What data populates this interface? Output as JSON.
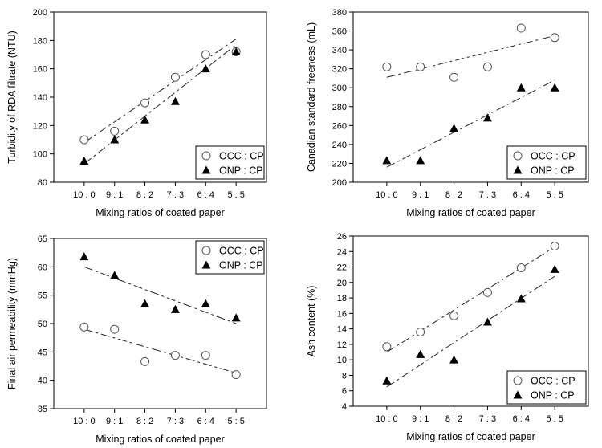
{
  "chart_data": [
    {
      "type": "scatter",
      "categories": [
        "10 : 0",
        "9 : 1",
        "8 : 2",
        "7 : 3",
        "6 : 4",
        "5 : 5"
      ],
      "xlabel": "Mixing ratios of coated paper",
      "ylabel": "Turbidity of RDA filtrate (NTU)",
      "ylim": [
        80,
        200
      ],
      "yticks": [
        80,
        100,
        120,
        140,
        160,
        180,
        200
      ],
      "legend_position": "bottom-right",
      "series": [
        {
          "name": "OCC : CP",
          "marker": "circle",
          "values": [
            110,
            116,
            136,
            154,
            170,
            172
          ],
          "trend": [
            108,
            181
          ]
        },
        {
          "name": "ONP : CP",
          "marker": "triangle",
          "values": [
            95,
            110,
            124,
            137,
            160,
            172
          ],
          "trend": [
            93,
            177
          ]
        }
      ]
    },
    {
      "type": "scatter",
      "categories": [
        "10 : 0",
        "9 : 1",
        "8 : 2",
        "7 : 3",
        "6 : 4",
        "5 : 5"
      ],
      "xlabel": "Mixing ratios of coated paper",
      "ylabel": "Canadian standard freeness (mL)",
      "ylim": [
        200,
        380
      ],
      "yticks": [
        200,
        220,
        240,
        260,
        280,
        300,
        320,
        340,
        360,
        380
      ],
      "legend_position": "bottom-right",
      "series": [
        {
          "name": "OCC : CP",
          "marker": "circle",
          "values": [
            322,
            322,
            311,
            322,
            363,
            353
          ],
          "trend": [
            311,
            355
          ]
        },
        {
          "name": "ONP : CP",
          "marker": "triangle",
          "values": [
            223,
            223,
            257,
            268,
            300,
            300
          ],
          "trend": [
            216,
            308
          ]
        }
      ]
    },
    {
      "type": "scatter",
      "categories": [
        "10 : 0",
        "9 : 1",
        "8 : 2",
        "7 : 3",
        "6 : 4",
        "5 : 5"
      ],
      "xlabel": "Mixing ratios of coated paper",
      "ylabel": "Final air permeability (mmHg)",
      "ylim": [
        35,
        65
      ],
      "yticks": [
        35,
        40,
        45,
        50,
        55,
        60,
        65
      ],
      "legend_position": "top-right",
      "series": [
        {
          "name": "OCC : CP",
          "marker": "circle",
          "values": [
            49.4,
            49.0,
            43.3,
            44.4,
            44.4,
            41.0
          ],
          "trend": [
            49.0,
            41.3
          ]
        },
        {
          "name": "ONP : CP",
          "marker": "triangle",
          "values": [
            61.8,
            58.5,
            53.5,
            52.5,
            53.5,
            51.0
          ],
          "trend": [
            60.0,
            50.0
          ]
        }
      ]
    },
    {
      "type": "scatter",
      "categories": [
        "10 : 0",
        "9 : 1",
        "8 : 2",
        "7 : 3",
        "6 : 4",
        "5 : 5"
      ],
      "xlabel": "Mixing ratios of coated paper",
      "ylabel": "Ash content (%)",
      "ylim": [
        4,
        26
      ],
      "yticks": [
        4,
        6,
        8,
        10,
        12,
        14,
        16,
        18,
        20,
        22,
        24,
        26
      ],
      "legend_position": "bottom-right",
      "series": [
        {
          "name": "OCC : CP",
          "marker": "circle",
          "values": [
            11.7,
            13.6,
            15.7,
            18.7,
            21.9,
            24.7
          ],
          "trend": [
            11.0,
            24.6
          ]
        },
        {
          "name": "ONP : CP",
          "marker": "triangle",
          "values": [
            7.3,
            10.7,
            10.0,
            14.9,
            17.9,
            21.7
          ],
          "trend": [
            6.5,
            20.8
          ]
        }
      ]
    }
  ]
}
